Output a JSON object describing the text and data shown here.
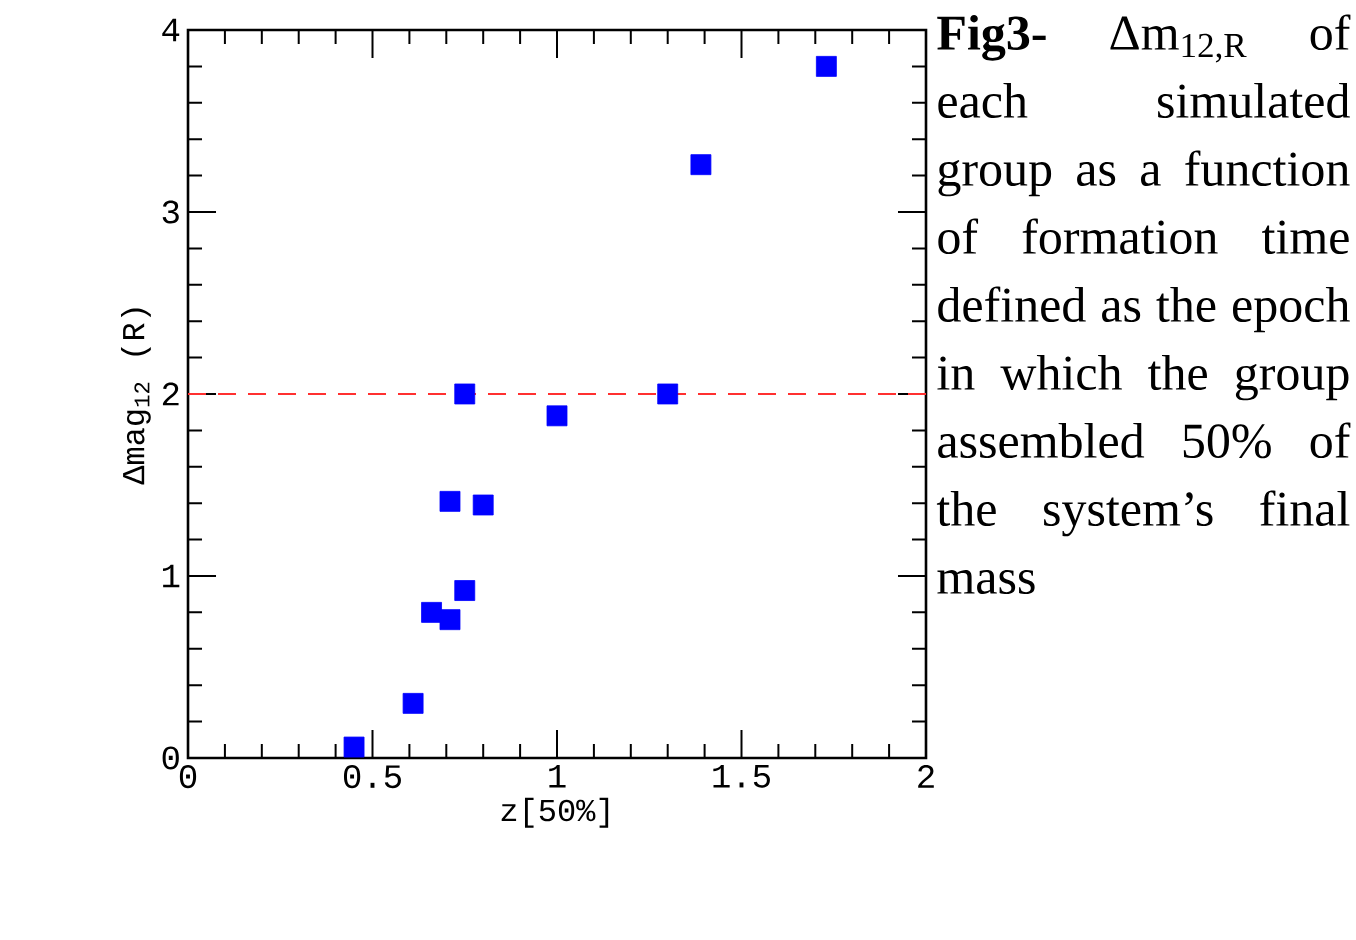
{
  "chart_data": {
    "type": "scatter",
    "xlabel": "z[50%]",
    "ylabel": "Δmag$_{12}$ (R)",
    "x": [
      0.45,
      0.61,
      0.66,
      0.71,
      0.75,
      0.71,
      0.8,
      0.75,
      1.0,
      1.3,
      1.39,
      1.73
    ],
    "series": [
      {
        "color": "#0000ff",
        "values": [
          0.06,
          0.3,
          0.8,
          0.76,
          0.92,
          1.41,
          1.39,
          2.0,
          1.88,
          2.0,
          3.26,
          3.8
        ]
      }
    ],
    "marker": "square",
    "xlim": [
      0,
      2
    ],
    "ylim": [
      0,
      4
    ],
    "xticks": [
      0,
      0.5,
      1,
      1.5,
      2
    ],
    "yticks": [
      0,
      1,
      2,
      3,
      4
    ],
    "ref_lines": [
      {
        "axis": "y",
        "value": 2,
        "color": "#ff3030",
        "line_style": "dashed"
      }
    ],
    "grid": false,
    "annotations": [
      "**Fig3-** Δm$_{12,R}$ of each simulated group as a function of formation time defined as the epoch in which the group assembled 50% of the system’s final mass"
    ]
  }
}
